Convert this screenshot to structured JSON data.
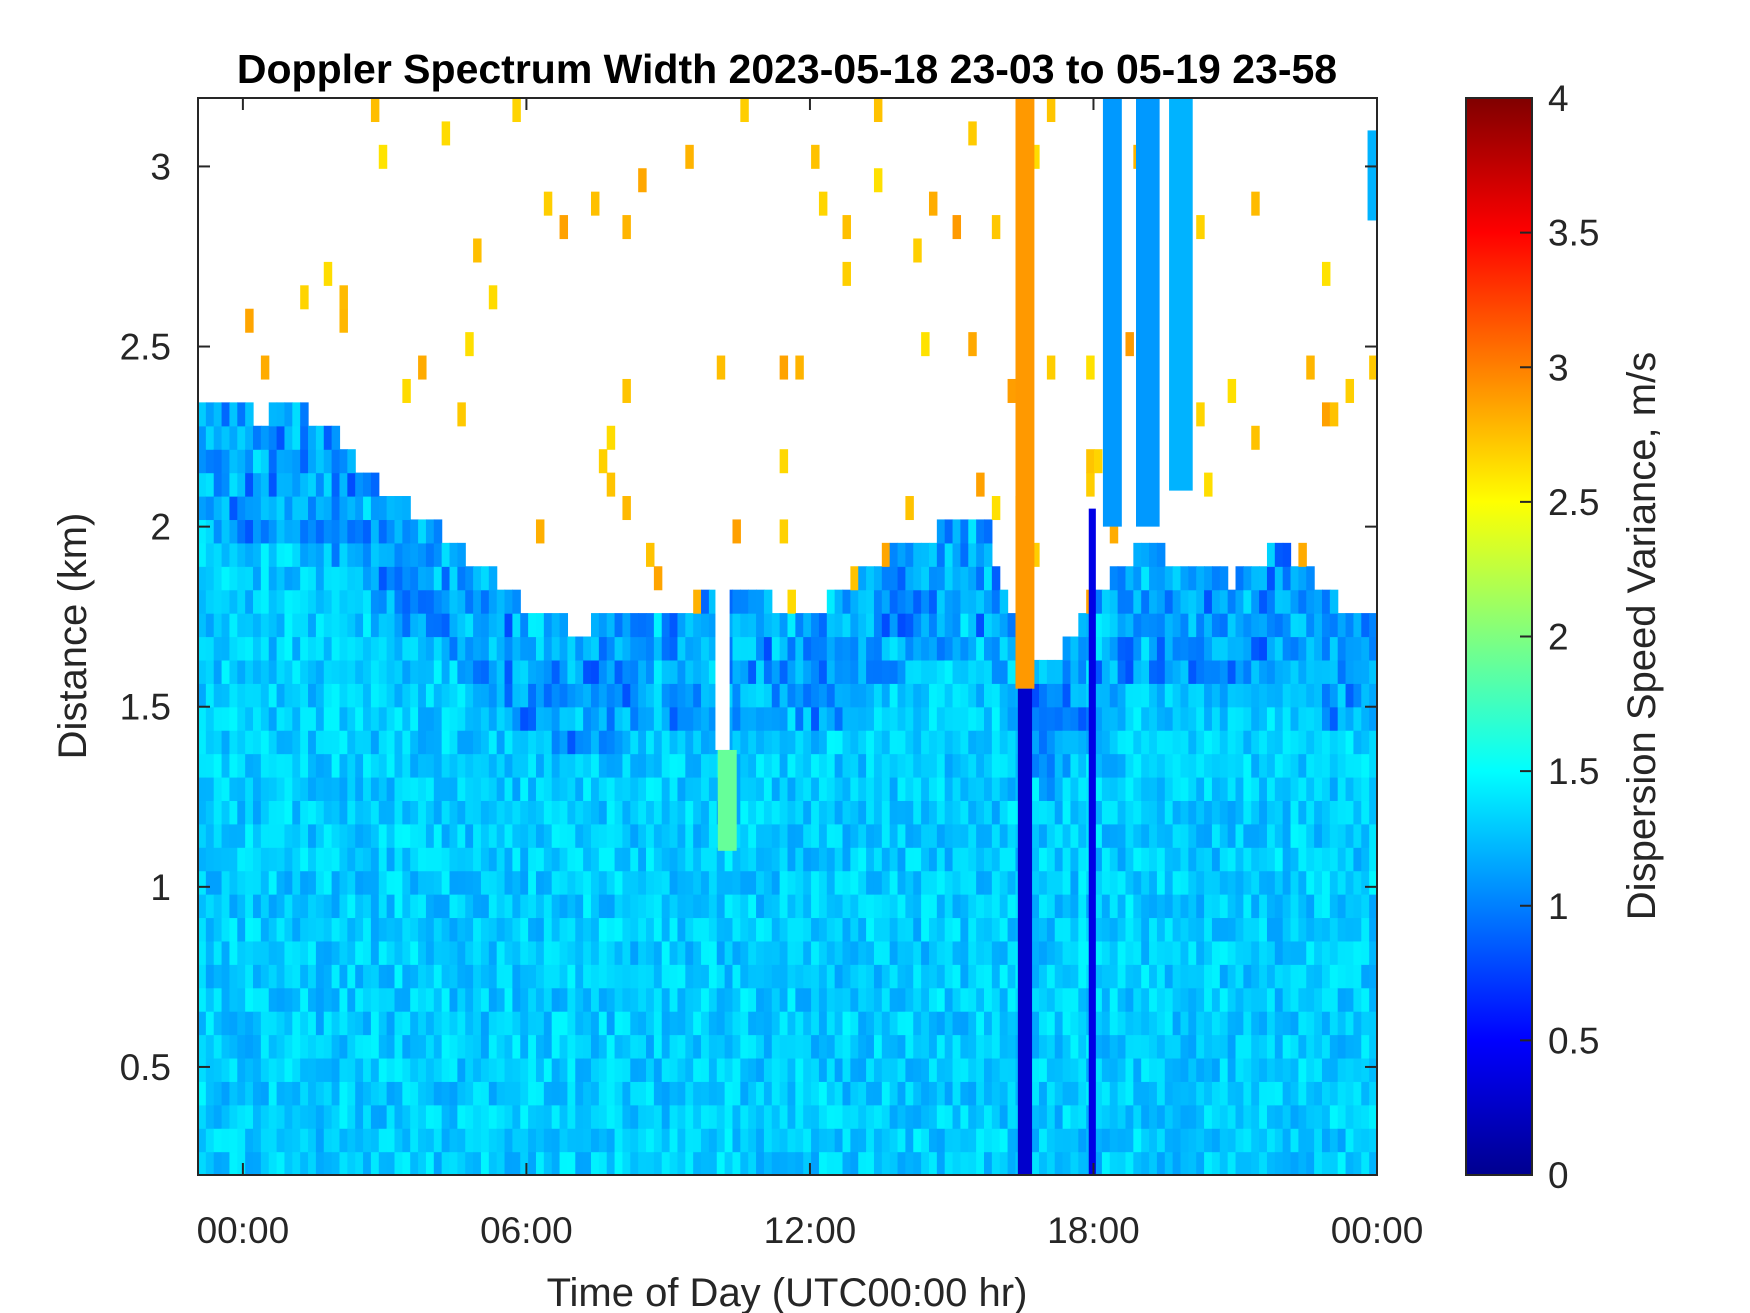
{
  "chart_data": {
    "type": "heatmap",
    "title": "Doppler Spectrum Width 2023-05-18 23-03 to 05-19 23-58",
    "xlabel": "Time of Day (UTC00:00 hr)",
    "ylabel": "Distance (km)",
    "x_range_hours": [
      -0.95,
      24.0
    ],
    "ylim": [
      0.2,
      3.19
    ],
    "x_ticks": [
      {
        "value": 0,
        "label": "00:00"
      },
      {
        "value": 6,
        "label": "06:00"
      },
      {
        "value": 12,
        "label": "12:00"
      },
      {
        "value": 18,
        "label": "18:00"
      },
      {
        "value": 24,
        "label": "00:00"
      }
    ],
    "y_ticks": [
      {
        "value": 0.5,
        "label": "0.5"
      },
      {
        "value": 1,
        "label": "1"
      },
      {
        "value": 1.5,
        "label": "1.5"
      },
      {
        "value": 2,
        "label": "2"
      },
      {
        "value": 2.5,
        "label": "2.5"
      },
      {
        "value": 3,
        "label": "3"
      }
    ],
    "colorbar": {
      "label": "Dispersion Speed Variance, m/s",
      "colormap": "jet",
      "range": [
        0,
        4
      ],
      "ticks": [
        {
          "value": 0,
          "label": "0"
        },
        {
          "value": 0.5,
          "label": "0.5"
        },
        {
          "value": 1,
          "label": "1"
        },
        {
          "value": 1.5,
          "label": "1.5"
        },
        {
          "value": 2,
          "label": "2"
        },
        {
          "value": 2.5,
          "label": "2.5"
        },
        {
          "value": 3,
          "label": "3"
        },
        {
          "value": 3.5,
          "label": "3.5"
        },
        {
          "value": 4,
          "label": "4"
        }
      ]
    },
    "grid": false,
    "field": {
      "background_value": 1.3,
      "boundary_top_km": [
        {
          "t": -0.95,
          "km": 2.35
        },
        {
          "t": 0.5,
          "km": 2.3
        },
        {
          "t": 1.0,
          "km": 2.35
        },
        {
          "t": 2.0,
          "km": 2.25
        },
        {
          "t": 3.0,
          "km": 2.1
        },
        {
          "t": 4.0,
          "km": 2.0
        },
        {
          "t": 5.0,
          "km": 1.9
        },
        {
          "t": 6.0,
          "km": 1.78
        },
        {
          "t": 7.0,
          "km": 1.72
        },
        {
          "t": 8.0,
          "km": 1.74
        },
        {
          "t": 9.0,
          "km": 1.78
        },
        {
          "t": 10.0,
          "km": 1.8
        },
        {
          "t": 11.0,
          "km": 1.8
        },
        {
          "t": 12.0,
          "km": 1.76
        },
        {
          "t": 13.0,
          "km": 1.85
        },
        {
          "t": 14.0,
          "km": 1.95
        },
        {
          "t": 15.0,
          "km": 2.0
        },
        {
          "t": 15.7,
          "km": 2.02
        },
        {
          "t": 16.3,
          "km": 1.75
        },
        {
          "t": 17.0,
          "km": 1.6
        },
        {
          "t": 17.5,
          "km": 1.7
        },
        {
          "t": 18.0,
          "km": 1.8
        },
        {
          "t": 19.0,
          "km": 1.95
        },
        {
          "t": 20.0,
          "km": 1.9
        },
        {
          "t": 21.0,
          "km": 1.85
        },
        {
          "t": 22.0,
          "km": 1.95
        },
        {
          "t": 23.0,
          "km": 1.8
        },
        {
          "t": 24.0,
          "km": 1.75
        }
      ],
      "features": [
        {
          "kind": "band",
          "t0": 16.35,
          "t1": 16.75,
          "km0": 1.55,
          "km1": 3.19,
          "value": 2.9
        },
        {
          "kind": "band",
          "t0": 16.4,
          "t1": 16.7,
          "km0": 0.2,
          "km1": 1.55,
          "value": 0.3
        },
        {
          "kind": "band",
          "t0": 17.9,
          "t1": 18.05,
          "km0": 0.2,
          "km1": 2.05,
          "value": 0.4
        },
        {
          "kind": "band",
          "t0": 10.0,
          "t1": 10.3,
          "km0": 1.38,
          "km1": 1.9,
          "value": null
        },
        {
          "kind": "band",
          "t0": 10.05,
          "t1": 10.45,
          "km0": 1.1,
          "km1": 1.38,
          "value": 1.9
        },
        {
          "kind": "band",
          "t0": 18.2,
          "t1": 18.6,
          "km0": 2.0,
          "km1": 3.19,
          "value": 1.1
        },
        {
          "kind": "band",
          "t0": 18.9,
          "t1": 19.4,
          "km0": 2.0,
          "km1": 3.19,
          "value": 1.1
        },
        {
          "kind": "band",
          "t0": 19.6,
          "t1": 20.1,
          "km0": 2.1,
          "km1": 3.19,
          "value": 1.2
        },
        {
          "kind": "band",
          "t0": 23.8,
          "t1": 24.0,
          "km0": 2.85,
          "km1": 3.1,
          "value": 1.2
        }
      ]
    }
  }
}
